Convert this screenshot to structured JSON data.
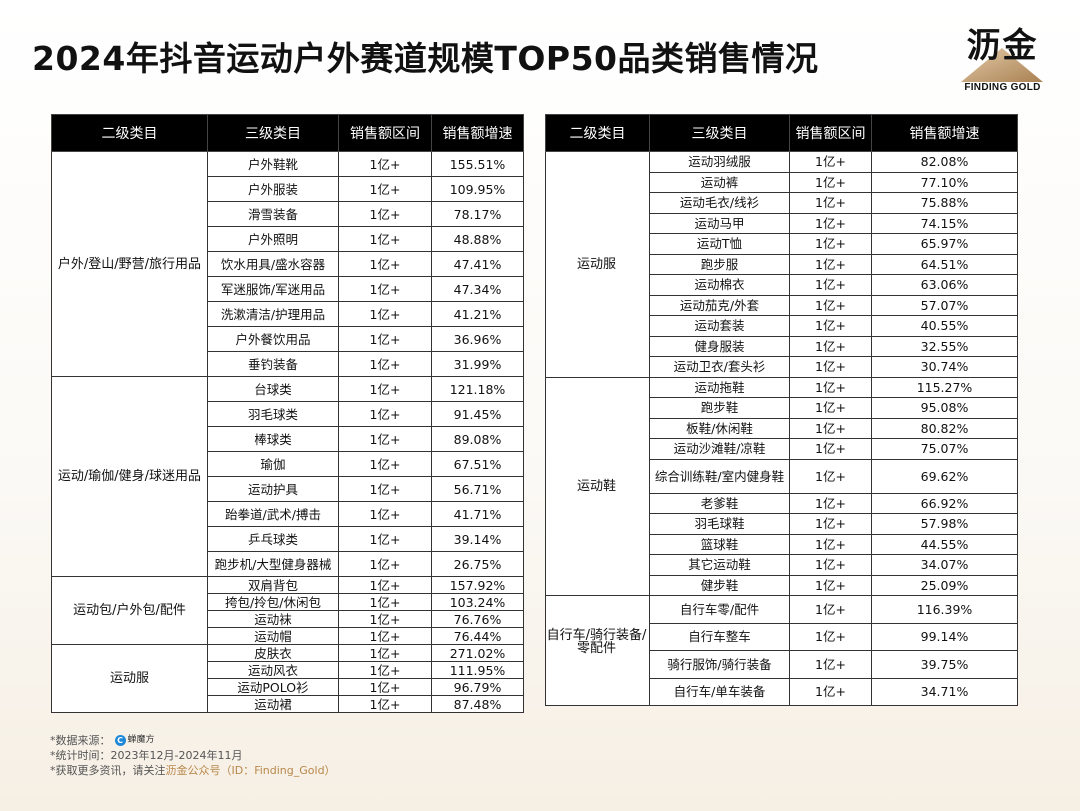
{
  "title": "2024年抖音运动户外赛道规模TOP50品类销售情况",
  "logo": {
    "cn": "沥金",
    "en": "FINDING GOLD",
    "accent": "#c4a37d"
  },
  "headers": [
    "二级类目",
    "三级类目",
    "销售额区间",
    "销售额增速"
  ],
  "left_table": [
    {
      "category": "户外/登山/野营/旅行用品",
      "rows": [
        [
          "户外鞋靴",
          "1亿+",
          "155.51%"
        ],
        [
          "户外服装",
          "1亿+",
          "109.95%"
        ],
        [
          "滑雪装备",
          "1亿+",
          "78.17%"
        ],
        [
          "户外照明",
          "1亿+",
          "48.88%"
        ],
        [
          "饮水用具/盛水容器",
          "1亿+",
          "47.41%"
        ],
        [
          "军迷服饰/军迷用品",
          "1亿+",
          "47.34%"
        ],
        [
          "洗漱清洁/护理用品",
          "1亿+",
          "41.21%"
        ],
        [
          "户外餐饮用品",
          "1亿+",
          "36.96%"
        ],
        [
          "垂钓装备",
          "1亿+",
          "31.99%"
        ]
      ]
    },
    {
      "category": "运动/瑜伽/健身/球迷用品",
      "rows": [
        [
          "台球类",
          "1亿+",
          "121.18%"
        ],
        [
          "羽毛球类",
          "1亿+",
          "91.45%"
        ],
        [
          "棒球类",
          "1亿+",
          "89.08%"
        ],
        [
          "瑜伽",
          "1亿+",
          "67.51%"
        ],
        [
          "运动护具",
          "1亿+",
          "56.71%"
        ],
        [
          "跆拳道/武术/搏击",
          "1亿+",
          "41.71%"
        ],
        [
          "乒乓球类",
          "1亿+",
          "39.14%"
        ],
        [
          "跑步机/大型健身器械",
          "1亿+",
          "26.75%"
        ]
      ]
    },
    {
      "category": "运动包/户外包/配件",
      "rows": [
        [
          "双肩背包",
          "1亿+",
          "157.92%"
        ],
        [
          "挎包/拎包/休闲包",
          "1亿+",
          "103.24%"
        ],
        [
          "运动袜",
          "1亿+",
          "76.76%"
        ],
        [
          "运动帽",
          "1亿+",
          "76.44%"
        ]
      ]
    },
    {
      "category": "运动服",
      "rows": [
        [
          "皮肤衣",
          "1亿+",
          "271.02%"
        ],
        [
          "运动风衣",
          "1亿+",
          "111.95%"
        ],
        [
          "运动POLO衫",
          "1亿+",
          "96.79%"
        ],
        [
          "运动裙",
          "1亿+",
          "87.48%"
        ]
      ]
    }
  ],
  "right_table": [
    {
      "category": "运动服",
      "rows": [
        [
          "运动羽绒服",
          "1亿+",
          "82.08%"
        ],
        [
          "运动裤",
          "1亿+",
          "77.10%"
        ],
        [
          "运动毛衣/线衫",
          "1亿+",
          "75.88%"
        ],
        [
          "运动马甲",
          "1亿+",
          "74.15%"
        ],
        [
          "运动T恤",
          "1亿+",
          "65.97%"
        ],
        [
          "跑步服",
          "1亿+",
          "64.51%"
        ],
        [
          "运动棉衣",
          "1亿+",
          "63.06%"
        ],
        [
          "运动茄克/外套",
          "1亿+",
          "57.07%"
        ],
        [
          "运动套装",
          "1亿+",
          "40.55%"
        ],
        [
          "健身服装",
          "1亿+",
          "32.55%"
        ],
        [
          "运动卫衣/套头衫",
          "1亿+",
          "30.74%"
        ]
      ]
    },
    {
      "category": "运动鞋",
      "rows": [
        [
          "运动拖鞋",
          "1亿+",
          "115.27%"
        ],
        [
          "跑步鞋",
          "1亿+",
          "95.08%"
        ],
        [
          "板鞋/休闲鞋",
          "1亿+",
          "80.82%"
        ],
        [
          "运动沙滩鞋/凉鞋",
          "1亿+",
          "75.07%"
        ],
        [
          "综合训练鞋/室内健身鞋",
          "1亿+",
          "69.62%"
        ],
        [
          "老爹鞋",
          "1亿+",
          "66.92%"
        ],
        [
          "羽毛球鞋",
          "1亿+",
          "57.98%"
        ],
        [
          "篮球鞋",
          "1亿+",
          "44.55%"
        ],
        [
          "其它运动鞋",
          "1亿+",
          "34.07%"
        ],
        [
          "健步鞋",
          "1亿+",
          "25.09%"
        ]
      ]
    },
    {
      "category": "自行车/骑行装备/零配件",
      "rows": [
        [
          "自行车零/配件",
          "1亿+",
          "116.39%"
        ],
        [
          "自行车整车",
          "1亿+",
          "99.14%"
        ],
        [
          "骑行服饰/骑行装备",
          "1亿+",
          "39.75%"
        ],
        [
          "自行车/单车装备",
          "1亿+",
          "34.71%"
        ]
      ]
    }
  ],
  "footer": {
    "source_label": "*数据来源：",
    "source_name": "蝉魔方",
    "period": "*统计时间：2023年12月-2024年11月",
    "more_prefix": "*获取更多资讯，请关注",
    "more_highlight": "沥金公众号（ID：Finding_Gold）"
  }
}
